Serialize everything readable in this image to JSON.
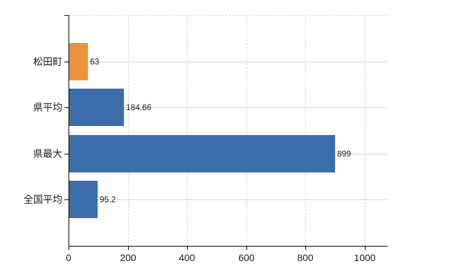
{
  "page": {
    "background_color": "#ffffff",
    "axis_color": "#000000",
    "text_color": "#1a1a1a",
    "vertical_gridline_color": "#d8d8d8",
    "horizontal_gridline_color": "#d5dbd5"
  },
  "chart_data": {
    "type": "bar",
    "orientation": "horizontal",
    "title": "",
    "xlabel": "",
    "ylabel": "",
    "categories": [
      "松田町",
      "県平均",
      "県最大",
      "全国平均"
    ],
    "values": [
      63,
      184.66,
      899,
      95.2
    ],
    "value_labels": [
      "63",
      "184.66",
      "899",
      "95.2"
    ],
    "bar_colors": [
      "#EE9239",
      "#3D6EAC",
      "#3D6EAC",
      "#3D6EAC"
    ],
    "highlight_color": "#EE9239",
    "default_color": "#3D6EAC",
    "x_ticks": [
      0,
      200,
      400,
      600,
      800,
      1000
    ],
    "x_tick_labels": [
      "0",
      "200",
      "400",
      "600",
      "800",
      "1000"
    ],
    "x_max": 1076,
    "grid": {
      "vertical": "dashed",
      "horizontal": "solid",
      "top_border": "dashed"
    },
    "legend": "none"
  }
}
